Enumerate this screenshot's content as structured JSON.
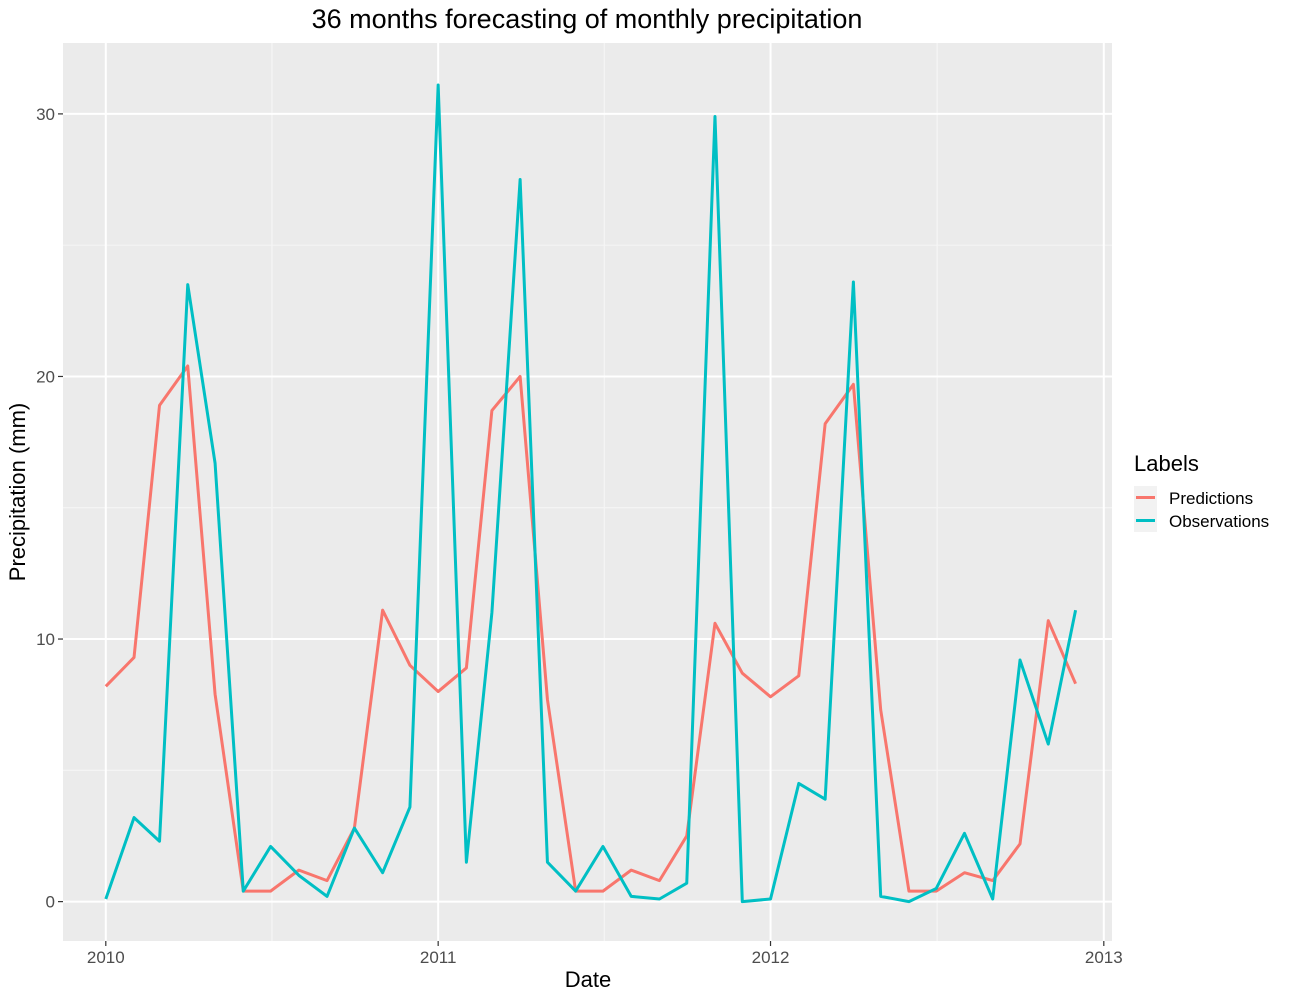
{
  "chart_data": {
    "type": "line",
    "title": "36 months forecasting of monthly precipitation",
    "xlabel": "Date",
    "ylabel": "Precipitation (mm)",
    "x_axis_type": "date",
    "xlim": [
      "2009-11-15",
      "2013-01-10"
    ],
    "ylim": [
      -1.5,
      32.7
    ],
    "x_ticks": [
      {
        "date": "2010-01-01",
        "label": "2010"
      },
      {
        "date": "2011-01-01",
        "label": "2011"
      },
      {
        "date": "2012-01-01",
        "label": "2012"
      },
      {
        "date": "2013-01-01",
        "label": "2013"
      }
    ],
    "y_ticks": [
      0,
      10,
      20,
      30
    ],
    "grid": true,
    "legend": {
      "title": "Labels",
      "position": "right"
    },
    "x": [
      "2010-01-01",
      "2010-02-01",
      "2010-03-01",
      "2010-04-01",
      "2010-05-01",
      "2010-06-01",
      "2010-07-01",
      "2010-08-01",
      "2010-09-01",
      "2010-10-01",
      "2010-11-01",
      "2010-12-01",
      "2011-01-01",
      "2011-02-01",
      "2011-03-01",
      "2011-04-01",
      "2011-05-01",
      "2011-06-01",
      "2011-07-01",
      "2011-08-01",
      "2011-09-01",
      "2011-10-01",
      "2011-11-01",
      "2011-12-01",
      "2012-01-01",
      "2012-02-01",
      "2012-03-01",
      "2012-04-01",
      "2012-05-01",
      "2012-06-01",
      "2012-07-01",
      "2012-08-01",
      "2012-09-01",
      "2012-10-01",
      "2012-11-01",
      "2012-12-01"
    ],
    "series": [
      {
        "name": "Predictions",
        "color": "#F8766D",
        "values": [
          8.2,
          9.3,
          18.9,
          20.4,
          7.9,
          0.4,
          0.4,
          1.2,
          0.8,
          2.8,
          11.1,
          9.0,
          8.0,
          8.9,
          18.7,
          20.0,
          7.7,
          0.4,
          0.4,
          1.2,
          0.8,
          2.5,
          10.6,
          8.7,
          7.8,
          8.6,
          18.2,
          19.7,
          7.3,
          0.4,
          0.4,
          1.1,
          0.8,
          2.2,
          10.7,
          8.3
        ]
      },
      {
        "name": "Observations",
        "color": "#00BFC4",
        "values": [
          0.1,
          3.2,
          2.3,
          23.5,
          16.7,
          0.4,
          2.1,
          1.0,
          0.2,
          2.8,
          1.1,
          3.6,
          31.1,
          1.5,
          11.0,
          27.5,
          1.5,
          0.4,
          2.1,
          0.2,
          0.1,
          0.7,
          29.9,
          0.0,
          0.1,
          4.5,
          3.9,
          23.6,
          0.2,
          0.0,
          0.5,
          2.6,
          0.1,
          9.2,
          6.0,
          11.1
        ]
      }
    ]
  }
}
